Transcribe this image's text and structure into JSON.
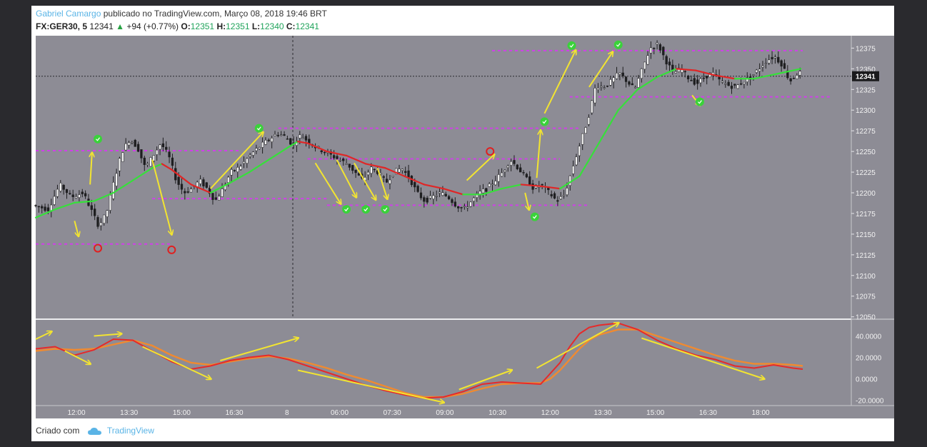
{
  "header": {
    "author": "Gabriel Camargo",
    "published": "publicado no TradingView.com, Março 08, 2018 19:46 BRT",
    "symbol": "FX:GER30, 5",
    "last": "12341",
    "change": "+94 (+0.77%)",
    "o_label": "O:",
    "o_value": "12351",
    "h_label": "H:",
    "h_value": "12351",
    "l_label": "L:",
    "l_value": "12340",
    "c_label": "C:",
    "c_value": "12341"
  },
  "footer": {
    "created": "Criado com",
    "brand": "TradingView"
  },
  "colors": {
    "plot_bg": "#8d8c95",
    "up_ma": "#36e03a",
    "down_ma": "#e02626",
    "level": "#d040e8",
    "arrow": "#f2e431",
    "sig_green": "#3ad23a",
    "sig_red": "#e02020",
    "osc_fast": "#e62a2a",
    "osc_slow": "#f08a30"
  },
  "chart_data": {
    "type": "line",
    "price_axis": {
      "ylim": [
        12048,
        12390
      ],
      "ticks": [
        12050,
        12075,
        12100,
        12125,
        12150,
        12175,
        12200,
        12225,
        12250,
        12275,
        12300,
        12325,
        12350,
        12375
      ]
    },
    "last_price_label": "12341",
    "x_ticks": [
      "12:00",
      "13:30",
      "15:00",
      "16:30",
      "8",
      "06:00",
      "07:30",
      "09:00",
      "10:30",
      "12:00",
      "13:30",
      "15:00",
      "16:30",
      "18:00"
    ],
    "price_path": [
      [
        0,
        12185
      ],
      [
        8,
        12180
      ],
      [
        14,
        12210
      ],
      [
        20,
        12195
      ],
      [
        26,
        12200
      ],
      [
        30,
        12180
      ],
      [
        34,
        12160
      ],
      [
        38,
        12175
      ],
      [
        42,
        12215
      ],
      [
        46,
        12250
      ],
      [
        50,
        12265
      ],
      [
        54,
        12255
      ],
      [
        58,
        12230
      ],
      [
        62,
        12245
      ],
      [
        66,
        12260
      ],
      [
        70,
        12245
      ],
      [
        74,
        12215
      ],
      [
        78,
        12200
      ],
      [
        82,
        12205
      ],
      [
        86,
        12215
      ],
      [
        90,
        12205
      ],
      [
        94,
        12190
      ],
      [
        98,
        12205
      ],
      [
        102,
        12225
      ],
      [
        106,
        12230
      ],
      [
        110,
        12240
      ],
      [
        114,
        12250
      ],
      [
        118,
        12258
      ],
      [
        122,
        12265
      ],
      [
        126,
        12272
      ],
      [
        130,
        12268
      ],
      [
        134,
        12258
      ],
      [
        138,
        12270
      ],
      [
        142,
        12262
      ],
      [
        146,
        12255
      ],
      [
        150,
        12250
      ],
      [
        154,
        12245
      ],
      [
        158,
        12240
      ],
      [
        162,
        12235
      ],
      [
        166,
        12225
      ],
      [
        170,
        12215
      ],
      [
        174,
        12230
      ],
      [
        178,
        12225
      ],
      [
        182,
        12212
      ],
      [
        186,
        12225
      ],
      [
        190,
        12230
      ],
      [
        194,
        12218
      ],
      [
        198,
        12200
      ],
      [
        202,
        12190
      ],
      [
        206,
        12195
      ],
      [
        210,
        12200
      ],
      [
        214,
        12195
      ],
      [
        218,
        12185
      ],
      [
        222,
        12180
      ],
      [
        226,
        12190
      ],
      [
        230,
        12200
      ],
      [
        234,
        12205
      ],
      [
        238,
        12215
      ],
      [
        242,
        12225
      ],
      [
        246,
        12240
      ],
      [
        250,
        12230
      ],
      [
        254,
        12218
      ],
      [
        258,
        12205
      ],
      [
        262,
        12210
      ],
      [
        266,
        12200
      ],
      [
        270,
        12190
      ],
      [
        274,
        12198
      ],
      [
        278,
        12230
      ],
      [
        282,
        12260
      ],
      [
        286,
        12290
      ],
      [
        290,
        12330
      ],
      [
        294,
        12328
      ],
      [
        298,
        12335
      ],
      [
        302,
        12345
      ],
      [
        306,
        12335
      ],
      [
        310,
        12325
      ],
      [
        314,
        12350
      ],
      [
        318,
        12375
      ],
      [
        322,
        12380
      ],
      [
        326,
        12360
      ],
      [
        330,
        12345
      ],
      [
        334,
        12350
      ],
      [
        338,
        12338
      ],
      [
        342,
        12332
      ],
      [
        346,
        12340
      ],
      [
        350,
        12345
      ],
      [
        354,
        12335
      ],
      [
        358,
        12330
      ],
      [
        362,
        12328
      ],
      [
        366,
        12335
      ],
      [
        370,
        12340
      ],
      [
        374,
        12350
      ],
      [
        378,
        12360
      ],
      [
        382,
        12365
      ],
      [
        386,
        12355
      ],
      [
        390,
        12335
      ],
      [
        394,
        12345
      ]
    ],
    "ma_path": [
      [
        0,
        12170
      ],
      [
        10,
        12180
      ],
      [
        20,
        12188
      ],
      [
        30,
        12190
      ],
      [
        40,
        12200
      ],
      [
        50,
        12215
      ],
      [
        60,
        12230
      ],
      [
        65,
        12235
      ],
      [
        70,
        12228
      ],
      [
        80,
        12210
      ],
      [
        90,
        12200
      ],
      [
        100,
        12212
      ],
      [
        110,
        12225
      ],
      [
        120,
        12240
      ],
      [
        130,
        12255
      ],
      [
        135,
        12262
      ],
      [
        140,
        12260
      ],
      [
        150,
        12250
      ],
      [
        160,
        12245
      ],
      [
        170,
        12235
      ],
      [
        180,
        12230
      ],
      [
        190,
        12220
      ],
      [
        200,
        12210
      ],
      [
        210,
        12205
      ],
      [
        220,
        12198
      ],
      [
        230,
        12198
      ],
      [
        240,
        12205
      ],
      [
        250,
        12210
      ],
      [
        260,
        12208
      ],
      [
        270,
        12205
      ],
      [
        280,
        12220
      ],
      [
        290,
        12260
      ],
      [
        300,
        12300
      ],
      [
        310,
        12325
      ],
      [
        320,
        12340
      ],
      [
        330,
        12350
      ],
      [
        340,
        12348
      ],
      [
        350,
        12342
      ],
      [
        360,
        12338
      ],
      [
        370,
        12338
      ],
      [
        380,
        12343
      ],
      [
        390,
        12348
      ],
      [
        394,
        12350
      ]
    ],
    "levels": [
      {
        "value": 12138,
        "x": [
          0,
          70
        ]
      },
      {
        "value": 12251,
        "x": [
          0,
          105
        ]
      },
      {
        "value": 12193,
        "x": [
          60,
          150
        ]
      },
      {
        "value": 12278,
        "x": [
          125,
          280
        ]
      },
      {
        "value": 12241,
        "x": [
          140,
          270
        ]
      },
      {
        "value": 12185,
        "x": [
          150,
          285
        ]
      },
      {
        "value": 12372,
        "x": [
          235,
          395
        ]
      },
      {
        "value": 12316,
        "x": [
          275,
          410
        ]
      }
    ],
    "signals": [
      {
        "x": 32,
        "value": 12133,
        "color": "red",
        "glyph": "o"
      },
      {
        "x": 32,
        "value": 12265,
        "color": "green",
        "glyph": "✓"
      },
      {
        "x": 70,
        "value": 12131,
        "color": "red",
        "glyph": "o"
      },
      {
        "x": 115,
        "value": 12278,
        "color": "green",
        "glyph": "✓"
      },
      {
        "x": 160,
        "value": 12180,
        "color": "green",
        "glyph": "✓"
      },
      {
        "x": 170,
        "value": 12180,
        "color": "green",
        "glyph": "✓"
      },
      {
        "x": 180,
        "value": 12180,
        "color": "green",
        "glyph": "✓"
      },
      {
        "x": 234,
        "value": 12250,
        "color": "red",
        "glyph": "o"
      },
      {
        "x": 257,
        "value": 12171,
        "color": "green",
        "glyph": "✓"
      },
      {
        "x": 262,
        "value": 12286,
        "color": "green",
        "glyph": "✓"
      },
      {
        "x": 276,
        "value": 12378,
        "color": "green",
        "glyph": "✓"
      },
      {
        "x": 300,
        "value": 12379,
        "color": "green",
        "glyph": "✓"
      },
      {
        "x": 342,
        "value": 12310,
        "color": "green",
        "glyph": "✓"
      }
    ],
    "price_arrows": [
      {
        "from": [
          20,
          12166
        ],
        "to": [
          22,
          12148
        ]
      },
      {
        "from": [
          28,
          12210
        ],
        "to": [
          29,
          12248
        ]
      },
      {
        "from": [
          60,
          12240
        ],
        "to": [
          70,
          12150
        ]
      },
      {
        "from": [
          90,
          12205
        ],
        "to": [
          117,
          12273
        ]
      },
      {
        "from": [
          144,
          12236
        ],
        "to": [
          157,
          12187
        ]
      },
      {
        "from": [
          155,
          12240
        ],
        "to": [
          165,
          12195
        ]
      },
      {
        "from": [
          164,
          12236
        ],
        "to": [
          175,
          12192
        ]
      },
      {
        "from": [
          176,
          12230
        ],
        "to": [
          181,
          12193
        ]
      },
      {
        "from": [
          222,
          12215
        ],
        "to": [
          236,
          12246
        ]
      },
      {
        "from": [
          252,
          12200
        ],
        "to": [
          254,
          12180
        ]
      },
      {
        "from": [
          258,
          12218
        ],
        "to": [
          260,
          12275
        ]
      },
      {
        "from": [
          262,
          12296
        ],
        "to": [
          278,
          12372
        ]
      },
      {
        "from": [
          285,
          12328
        ],
        "to": [
          297,
          12370
        ]
      },
      {
        "from": [
          338,
          12318
        ],
        "to": [
          342,
          12306
        ]
      }
    ],
    "oscillator": {
      "ylim": [
        -25,
        55
      ],
      "ticks": [
        40,
        20,
        0,
        -20
      ],
      "tick_labels": [
        "40.0000",
        "20.0000",
        "0.0000",
        "-20.0000"
      ],
      "fast": [
        [
          0,
          28
        ],
        [
          10,
          30
        ],
        [
          20,
          22
        ],
        [
          30,
          27
        ],
        [
          40,
          37
        ],
        [
          50,
          36
        ],
        [
          60,
          26
        ],
        [
          70,
          16
        ],
        [
          80,
          9
        ],
        [
          90,
          12
        ],
        [
          100,
          17
        ],
        [
          110,
          20
        ],
        [
          120,
          22
        ],
        [
          130,
          18
        ],
        [
          140,
          12
        ],
        [
          150,
          6
        ],
        [
          160,
          0
        ],
        [
          170,
          -6
        ],
        [
          180,
          -11
        ],
        [
          190,
          -15
        ],
        [
          200,
          -18
        ],
        [
          210,
          -17
        ],
        [
          220,
          -12
        ],
        [
          230,
          -5
        ],
        [
          240,
          -3
        ],
        [
          250,
          -4
        ],
        [
          260,
          -5
        ],
        [
          265,
          5
        ],
        [
          270,
          15
        ],
        [
          275,
          30
        ],
        [
          280,
          42
        ],
        [
          285,
          48
        ],
        [
          290,
          50
        ],
        [
          300,
          52
        ],
        [
          310,
          46
        ],
        [
          320,
          36
        ],
        [
          330,
          28
        ],
        [
          340,
          22
        ],
        [
          350,
          18
        ],
        [
          360,
          12
        ],
        [
          370,
          10
        ],
        [
          380,
          13
        ],
        [
          390,
          10
        ],
        [
          395,
          9
        ]
      ],
      "slow": [
        [
          0,
          26
        ],
        [
          10,
          28
        ],
        [
          20,
          27
        ],
        [
          30,
          28
        ],
        [
          40,
          32
        ],
        [
          50,
          36
        ],
        [
          60,
          31
        ],
        [
          70,
          22
        ],
        [
          80,
          15
        ],
        [
          90,
          13
        ],
        [
          100,
          16
        ],
        [
          110,
          19
        ],
        [
          120,
          21
        ],
        [
          130,
          19
        ],
        [
          140,
          15
        ],
        [
          150,
          10
        ],
        [
          160,
          4
        ],
        [
          170,
          -1
        ],
        [
          180,
          -7
        ],
        [
          190,
          -13
        ],
        [
          200,
          -17
        ],
        [
          210,
          -17
        ],
        [
          220,
          -14
        ],
        [
          230,
          -9
        ],
        [
          240,
          -5
        ],
        [
          250,
          -4
        ],
        [
          260,
          -4
        ],
        [
          265,
          0
        ],
        [
          270,
          8
        ],
        [
          275,
          18
        ],
        [
          280,
          28
        ],
        [
          285,
          36
        ],
        [
          290,
          41
        ],
        [
          300,
          46
        ],
        [
          310,
          46
        ],
        [
          320,
          40
        ],
        [
          330,
          34
        ],
        [
          340,
          28
        ],
        [
          350,
          22
        ],
        [
          360,
          17
        ],
        [
          370,
          14
        ],
        [
          380,
          14
        ],
        [
          390,
          13
        ],
        [
          395,
          12
        ]
      ],
      "arrows": [
        {
          "from": [
            0,
            37
          ],
          "to": [
            8,
            44
          ]
        },
        {
          "from": [
            15,
            26
          ],
          "to": [
            28,
            14
          ]
        },
        {
          "from": [
            30,
            40
          ],
          "to": [
            44,
            42
          ]
        },
        {
          "from": [
            55,
            30
          ],
          "to": [
            90,
            0
          ]
        },
        {
          "from": [
            95,
            17
          ],
          "to": [
            135,
            38
          ]
        },
        {
          "from": [
            135,
            8
          ],
          "to": [
            210,
            -22
          ]
        },
        {
          "from": [
            218,
            -10
          ],
          "to": [
            245,
            8
          ]
        },
        {
          "from": [
            258,
            10
          ],
          "to": [
            300,
            52
          ]
        },
        {
          "from": [
            312,
            38
          ],
          "to": [
            375,
            0
          ]
        }
      ]
    }
  }
}
